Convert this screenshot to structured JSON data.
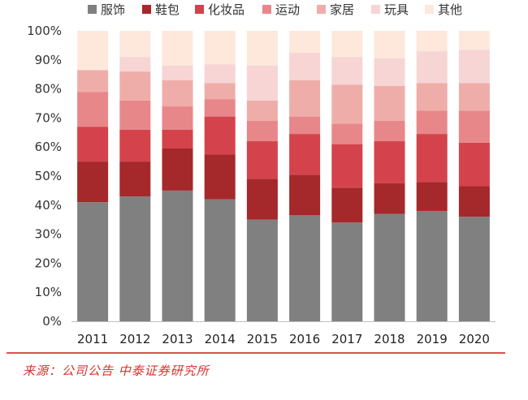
{
  "chart_data": {
    "type": "bar",
    "stacked": true,
    "normalized": true,
    "categories": [
      "2011",
      "2012",
      "2013",
      "2014",
      "2015",
      "2016",
      "2017",
      "2018",
      "2019",
      "2020"
    ],
    "series": [
      {
        "name": "服饰",
        "color": "#808080",
        "values": [
          41,
          43,
          45,
          42,
          35,
          36.5,
          34,
          37,
          38,
          36
        ]
      },
      {
        "name": "鞋包",
        "color": "#a5282b",
        "values": [
          14,
          12,
          14.5,
          15.5,
          14,
          14,
          12,
          10.5,
          10,
          10.5
        ]
      },
      {
        "name": "化妆品",
        "color": "#d4434b",
        "values": [
          12,
          11,
          6.5,
          13,
          13,
          14,
          15,
          14.5,
          16.5,
          15
        ]
      },
      {
        "name": "运动",
        "color": "#e8878a",
        "values": [
          12,
          10,
          8,
          6,
          7,
          6,
          7,
          7,
          8,
          11
        ]
      },
      {
        "name": "家居",
        "color": "#efadaa",
        "values": [
          7.5,
          10,
          9,
          5.5,
          7,
          12.5,
          13.5,
          12,
          9.5,
          9.5
        ]
      },
      {
        "name": "玩具",
        "color": "#f6d5d4",
        "values": [
          0,
          5,
          5,
          6.5,
          12,
          9.5,
          9.5,
          9.5,
          11,
          11.5
        ]
      },
      {
        "name": "其他",
        "color": "#fde8db",
        "values": [
          13.5,
          9,
          12,
          11.5,
          12,
          7.5,
          9,
          9.5,
          7,
          6.5
        ]
      }
    ],
    "ylim": [
      0,
      100
    ],
    "yticks": [
      "0%",
      "10%",
      "20%",
      "30%",
      "40%",
      "50%",
      "60%",
      "70%",
      "80%",
      "90%",
      "100%"
    ],
    "xlabel": "",
    "ylabel": "",
    "legend": "top"
  },
  "source": "来源：公司公告  中泰证券研究所"
}
